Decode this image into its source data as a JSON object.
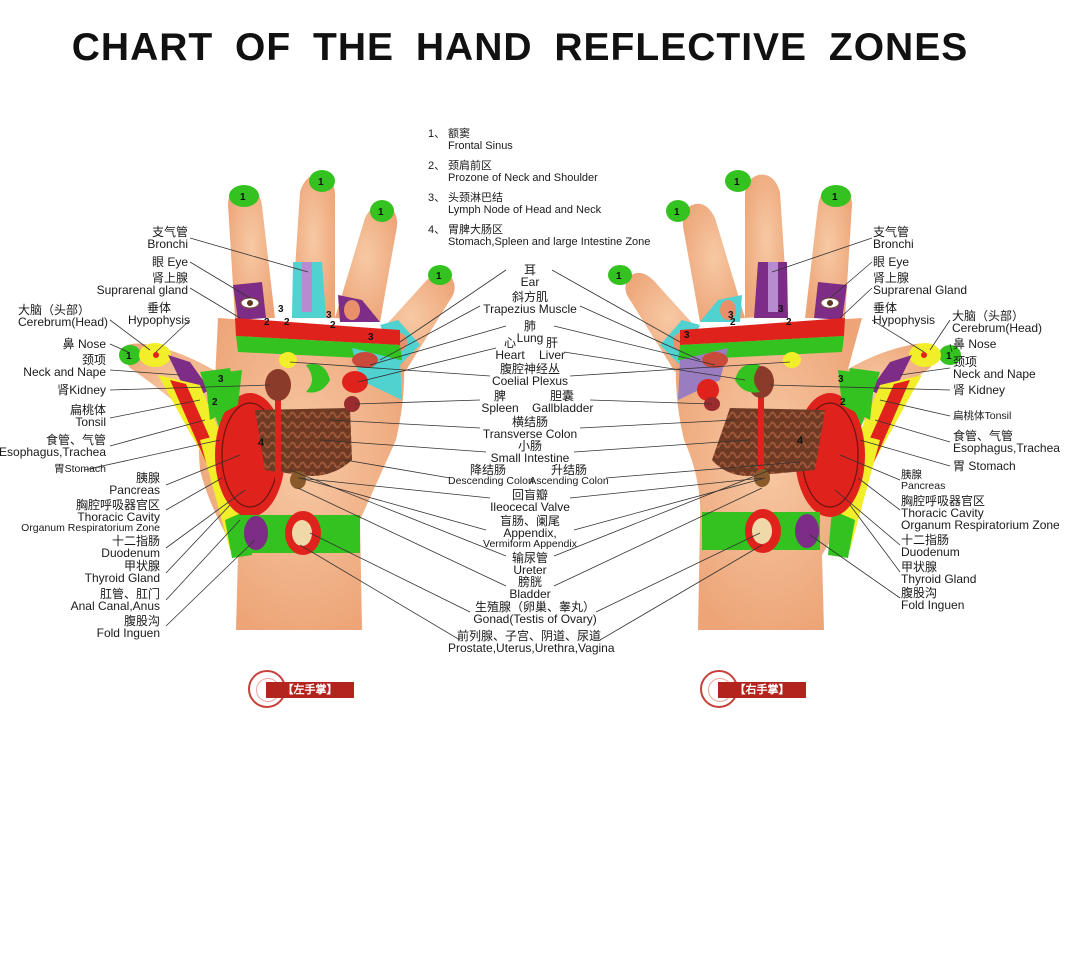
{
  "title": "CHART OF THE HAND REFLECTIVE ZONES",
  "legend": [
    {
      "num": "1、",
      "cn": "额窦",
      "en": "Frontal Sinus"
    },
    {
      "num": "2、",
      "cn": "颈肩前区",
      "en": "Prozone of Neck and Shoulder"
    },
    {
      "num": "3、",
      "cn": "头颈淋巴结",
      "en": "Lymph Node of Head and Neck"
    },
    {
      "num": "4、",
      "cn": "胃脾大肠区",
      "en": "Stomach,Spleen and large Intestine Zone"
    }
  ],
  "left_labels": {
    "bronchi": {
      "cn": "支气管",
      "en": "Bronchi"
    },
    "eye": {
      "cn": "眼",
      "en": "Eye"
    },
    "suprarenal": {
      "cn": "肾上腺",
      "en": "Suprarenal gland"
    },
    "hypophysis": {
      "cn": "垂体",
      "en": "Hypophysis"
    },
    "cerebrum": {
      "cn": "大脑（头部）",
      "en": "Cerebrum(Head)"
    },
    "nose": {
      "cn": "鼻",
      "en": "Nose"
    },
    "neck": {
      "cn": "颈项",
      "en": "Neck and Nape"
    },
    "kidney": {
      "cn": "肾",
      "en": "Kidney"
    },
    "tonsil": {
      "cn": "扁桃体",
      "en": "Tonsil"
    },
    "esophagus": {
      "cn": "食管、气管",
      "en": "Esophagus,Trachea"
    },
    "stomach": {
      "cn": "胃",
      "en": "Stomach"
    },
    "pancreas": {
      "cn": "胰腺",
      "en": "Pancreas"
    },
    "thoracic": {
      "cn": "胸腔呼吸器官区",
      "en1": "Thoracic Cavity",
      "en2": "Organum Respiratorium Zone"
    },
    "duodenum": {
      "cn": "十二指肠",
      "en": "Duodenum"
    },
    "thyroid": {
      "cn": "甲状腺",
      "en": "Thyroid Gland"
    },
    "anal": {
      "cn": "肛管、肛门",
      "en": "Anal Canal,Anus"
    },
    "inguen": {
      "cn": "腹股沟",
      "en": "Fold Inguen"
    }
  },
  "right_labels": {
    "bronchi": {
      "cn": "支气管",
      "en": "Bronchi"
    },
    "eye": {
      "cn": "眼",
      "en": "Eye"
    },
    "suprarenal": {
      "cn": "肾上腺",
      "en": "Suprarenal Gland"
    },
    "hypophysis": {
      "cn": "垂体",
      "en": "Hypophysis"
    },
    "cerebrum": {
      "cn": "大脑（头部）",
      "en": "Cerebrum(Head)"
    },
    "nose": {
      "cn": "鼻",
      "en": "Nose"
    },
    "neck": {
      "cn": "颈项",
      "en": "Neck and Nape"
    },
    "kidney": {
      "cn": "肾",
      "en": "Kidney"
    },
    "tonsil": {
      "cn": "扁桃体",
      "en": "Tonsil"
    },
    "esophagus": {
      "cn": "食管、气管",
      "en": "Esophagus,Trachea"
    },
    "stomach": {
      "cn": "胃",
      "en": "Stomach"
    },
    "pancreas": {
      "cn": "胰腺",
      "en": "Pancreas"
    },
    "thoracic": {
      "cn": "胸腔呼吸器官区",
      "en1": "Thoracic Cavity",
      "en2": "Organum Respiratorium Zone"
    },
    "duodenum": {
      "cn": "十二指肠",
      "en": "Duodenum"
    },
    "thyroid": {
      "cn": "甲状腺",
      "en": "Thyroid Gland"
    },
    "inguen": {
      "cn": "腹股沟",
      "en": "Fold Inguen"
    }
  },
  "center_labels": {
    "ear": {
      "cn": "耳",
      "en": "Ear"
    },
    "trapezius": {
      "cn": "斜方肌",
      "en": "Trapezius Muscle"
    },
    "lung": {
      "cn": "肺",
      "en": "Lung"
    },
    "heart": {
      "cn": "心",
      "en": "Heart"
    },
    "liver": {
      "cn": "肝",
      "en": "Liver"
    },
    "coelial": {
      "cn": "腹腔神经丛",
      "en": "Coelial Plexus"
    },
    "spleen": {
      "cn": "脾",
      "en": "Spleen"
    },
    "gallbladder": {
      "cn": "胆囊",
      "en": "Gallbladder"
    },
    "transverse": {
      "cn": "横结肠",
      "en": "Transverse Colon"
    },
    "small": {
      "cn": "小肠",
      "en": "Small Intestine"
    },
    "descending": {
      "cn": "降结肠",
      "en": "Descending Colon"
    },
    "ascending": {
      "cn": "升结肠",
      "en": "Ascending Colon"
    },
    "ileocecal": {
      "cn": "回盲瓣",
      "en": "Ileocecal Valve"
    },
    "appendix": {
      "cn": "盲肠、阑尾",
      "en1": "Appendix,",
      "en2": "Vermiform Appendix"
    },
    "ureter": {
      "cn": "输尿管",
      "en": "Ureter"
    },
    "bladder": {
      "cn": "膀胱",
      "en": "Bladder"
    },
    "gonad": {
      "cn": "生殖腺（卵巢、睾丸）",
      "en": "Gonad(Testis of Ovary)"
    },
    "prostate": {
      "cn": "前列腺、子宫、阴道、尿道",
      "en": "Prostate,Uterus,Urethra,Vagina"
    }
  },
  "zone_numbers": {
    "one": "1",
    "two": "2",
    "three": "3",
    "four": "4"
  },
  "stamps": {
    "left": "【左手掌】",
    "right": "【右手掌】"
  },
  "colors": {
    "skin": "#f3b48a",
    "green": "#33c21f",
    "yellow": "#f2ee2a",
    "purple": "#7e2d86",
    "cyan": "#4fd2d0",
    "red": "#e0221c",
    "lavender": "#9a7cc0",
    "intestine": "#7a3a22"
  }
}
